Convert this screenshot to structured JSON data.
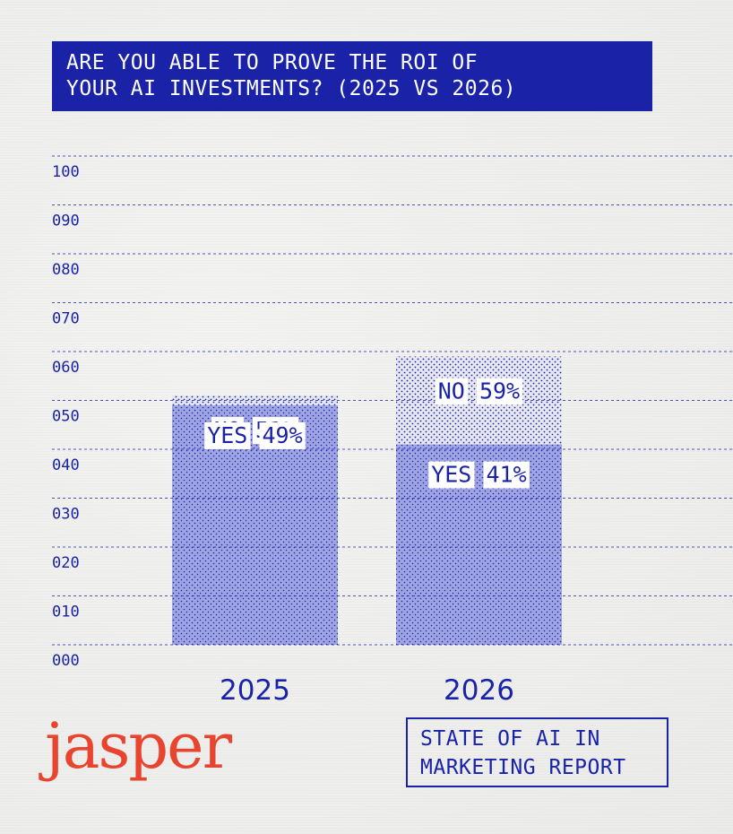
{
  "title": {
    "line1": "ARE YOU ABLE TO PROVE THE ROI OF",
    "line2": "YOUR AI INVESTMENTS? (2025 VS 2026)"
  },
  "logo": {
    "text": "jasper"
  },
  "report": {
    "line1": "STATE OF AI IN",
    "line2": "MARKETING REPORT"
  },
  "colors": {
    "accent": "#1a23a8",
    "yes_fill": "#9fa5e3",
    "no_fill": "#e7e8ef",
    "logo": "#e8442f"
  },
  "chart_data": {
    "type": "bar",
    "stacked": true,
    "title": "ARE YOU ABLE TO PROVE THE ROI OF YOUR AI INVESTMENTS? (2025 VS 2026)",
    "categories": [
      "2025",
      "2026"
    ],
    "series": [
      {
        "name": "NO",
        "values": [
          51,
          59
        ],
        "labels": [
          "NO 51%",
          "NO 59%"
        ]
      },
      {
        "name": "YES",
        "values": [
          49,
          41
        ],
        "labels": [
          "YES 49%",
          "YES 41%"
        ]
      }
    ],
    "ylim": [
      0,
      100
    ],
    "yticks": [
      "000",
      "010",
      "020",
      "030",
      "040",
      "050",
      "060",
      "070",
      "080",
      "090",
      "100"
    ],
    "grid": true,
    "xlabel": "",
    "ylabel": ""
  }
}
